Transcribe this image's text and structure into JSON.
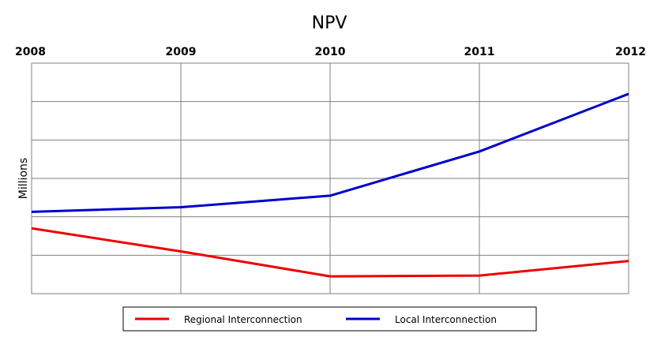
{
  "chart_data": {
    "type": "line",
    "title": "NPV",
    "xlabel": "",
    "ylabel": "Millions",
    "categories": [
      "2008",
      "2009",
      "2010",
      "2011",
      "2012"
    ],
    "ylim": [
      0,
      6
    ],
    "grid": true,
    "legend_position": "bottom",
    "series": [
      {
        "name": "Regional Interconnection",
        "color": "#ee0000",
        "values": [
          1.7,
          1.1,
          0.45,
          0.47,
          0.85
        ]
      },
      {
        "name": "Local Interconnection",
        "color": "#0000cc",
        "values": [
          2.13,
          2.25,
          2.55,
          3.7,
          5.2
        ]
      }
    ]
  }
}
